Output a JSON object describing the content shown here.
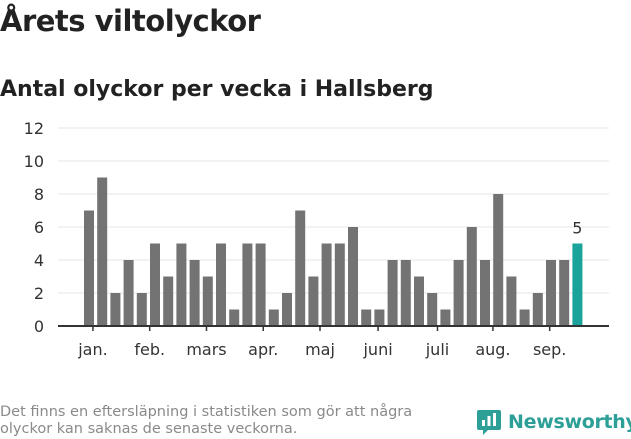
{
  "header": {
    "title": "Årets viltolyckor",
    "subtitle": "Antal olyckor per vecka i Hallsberg"
  },
  "footnote": "Det finns en eftersläpning i statistiken som gör att några olyckor kan saknas de senaste veckorna.",
  "brand": {
    "name": "Newsworthy",
    "icon": "newsworthy-logo-icon"
  },
  "colors": {
    "bar": "#737373",
    "highlight": "#1aa39a",
    "grid": "#e6e6e6",
    "axis": "#333333",
    "brand": "#2c9f97"
  },
  "chart_data": {
    "type": "bar",
    "values": [
      7,
      9,
      2,
      4,
      2,
      5,
      3,
      5,
      4,
      3,
      5,
      1,
      5,
      5,
      1,
      2,
      7,
      3,
      5,
      5,
      6,
      1,
      1,
      4,
      4,
      3,
      2,
      1,
      4,
      6,
      4,
      8,
      3,
      1,
      2,
      4,
      4,
      5
    ],
    "highlight_index": 37,
    "highlight_label": "5",
    "y_ticks": [
      "0",
      "2",
      "4",
      "6",
      "8",
      "10",
      "12"
    ],
    "ylim": [
      0,
      12
    ],
    "x_tick_labels": [
      {
        "label": "jan.",
        "bar": 0.3
      },
      {
        "label": "feb.",
        "bar": 4.6
      },
      {
        "label": "mars",
        "bar": 8.9
      },
      {
        "label": "apr.",
        "bar": 13.2
      },
      {
        "label": "maj",
        "bar": 17.5
      },
      {
        "label": "juni",
        "bar": 21.9
      },
      {
        "label": "juli",
        "bar": 26.4
      },
      {
        "label": "aug.",
        "bar": 30.6
      },
      {
        "label": "sep.",
        "bar": 34.9
      }
    ],
    "grid": true,
    "legend": "none"
  }
}
